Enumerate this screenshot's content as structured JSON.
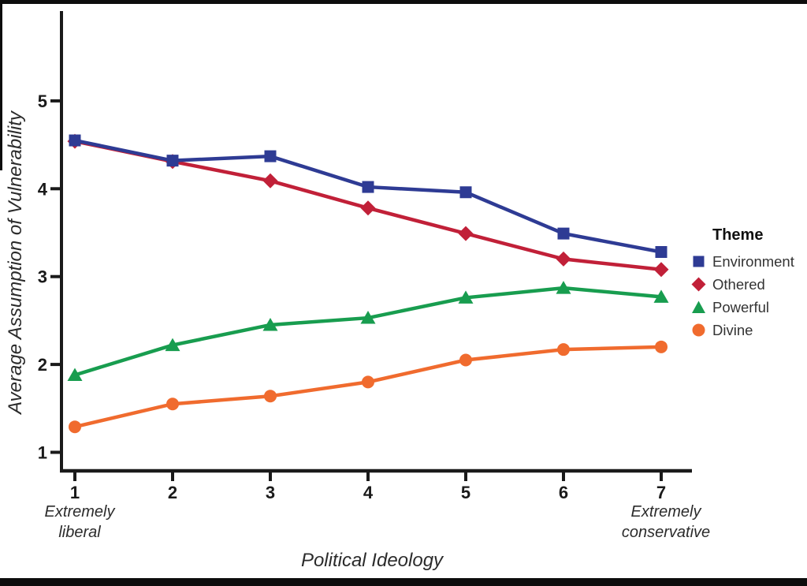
{
  "figure": {
    "background": "#ffffff",
    "axis_color": "#1a1a1a",
    "scan_border_color": "#0d0d0d"
  },
  "legend": {
    "title": "Theme"
  },
  "captions": {
    "x_left_extreme": "Extremely\nliberal",
    "x_right_extreme": "Extremely\nconservative"
  },
  "chart_data": {
    "type": "line",
    "title": "",
    "xlabel": "Political Ideology",
    "ylabel": "Average Assumption of Vulnerability",
    "x": [
      1,
      2,
      3,
      4,
      5,
      6,
      7
    ],
    "x_tick_labels": [
      "1",
      "2",
      "3",
      "4",
      "5",
      "6",
      "7"
    ],
    "y_ticks": [
      1,
      2,
      3,
      4,
      5
    ],
    "y_tick_labels": [
      "1",
      "2",
      "3",
      "4",
      "5"
    ],
    "xlim": [
      0.85,
      7.35
    ],
    "ylim": [
      0.78,
      6.0
    ],
    "grid": false,
    "legend_title": "Theme",
    "legend_position": "right",
    "x_axis_endpoint_captions": [
      "Extremely liberal",
      "Extremely conservative"
    ],
    "series": [
      {
        "name": "Environment",
        "marker": "square",
        "color": "#2e3b94",
        "values": [
          4.55,
          4.32,
          4.37,
          4.02,
          3.96,
          3.49,
          3.28
        ]
      },
      {
        "name": "Othered",
        "marker": "diamond",
        "color": "#c12038",
        "values": [
          4.54,
          4.31,
          4.09,
          3.78,
          3.49,
          3.2,
          3.08
        ]
      },
      {
        "name": "Powerful",
        "marker": "triangle",
        "color": "#189d4f",
        "values": [
          1.88,
          2.22,
          2.45,
          2.53,
          2.76,
          2.87,
          2.77
        ]
      },
      {
        "name": "Divine",
        "marker": "circle",
        "color": "#f06b2e",
        "values": [
          1.29,
          1.55,
          1.64,
          1.8,
          2.05,
          2.17,
          2.2
        ]
      }
    ]
  }
}
